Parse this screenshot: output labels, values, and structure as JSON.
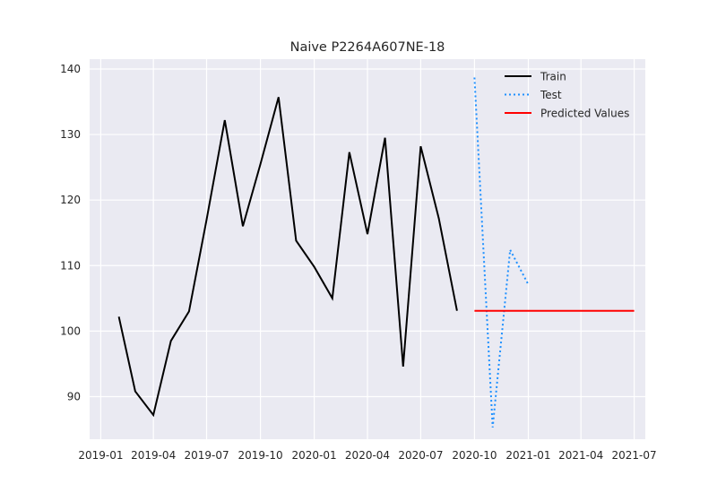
{
  "chart_data": {
    "type": "line",
    "title": "Naive P2264A607NE-18",
    "xlabel": "",
    "ylabel": "",
    "grid": true,
    "legend_position": "top-right",
    "ylim": [
      83.5,
      141.5
    ],
    "xlim": [
      "2018-12-13",
      "2021-07-20"
    ],
    "x_ticks": [
      "2019-01",
      "2019-04",
      "2019-07",
      "2019-10",
      "2020-01",
      "2020-04",
      "2020-07",
      "2020-10",
      "2021-01",
      "2021-04",
      "2021-07"
    ],
    "y_ticks": [
      90,
      100,
      110,
      120,
      130,
      140
    ],
    "series": [
      {
        "name": "Train",
        "color": "#000000",
        "style": "solid",
        "x": [
          "2019-02",
          "2019-03",
          "2019-04",
          "2019-05",
          "2019-06",
          "2019-07",
          "2019-08",
          "2019-09",
          "2019-10",
          "2019-11",
          "2019-12",
          "2020-01",
          "2020-02",
          "2020-03",
          "2020-04",
          "2020-05",
          "2020-06",
          "2020-07",
          "2020-08",
          "2020-09"
        ],
        "values": [
          102.2,
          90.8,
          87.2,
          98.5,
          103.0,
          117.0,
          132.2,
          116.0,
          125.5,
          135.7,
          113.8,
          109.8,
          105.0,
          127.3,
          114.8,
          129.5,
          94.6,
          128.2,
          117.2,
          103.1
        ]
      },
      {
        "name": "Test",
        "color": "#1e90ff",
        "style": "dotted",
        "x": [
          "2020-10",
          "2020-11",
          "2020-12",
          "2021-01"
        ],
        "values": [
          138.7,
          85.3,
          112.4,
          107.1
        ]
      },
      {
        "name": "Predicted Values",
        "color": "#ff0000",
        "style": "solid",
        "x": [
          "2020-10",
          "2020-11",
          "2020-12",
          "2021-01",
          "2021-02",
          "2021-03",
          "2021-04",
          "2021-05",
          "2021-06",
          "2021-07"
        ],
        "values": [
          103.1,
          103.1,
          103.1,
          103.1,
          103.1,
          103.1,
          103.1,
          103.1,
          103.1,
          103.1
        ]
      }
    ]
  }
}
